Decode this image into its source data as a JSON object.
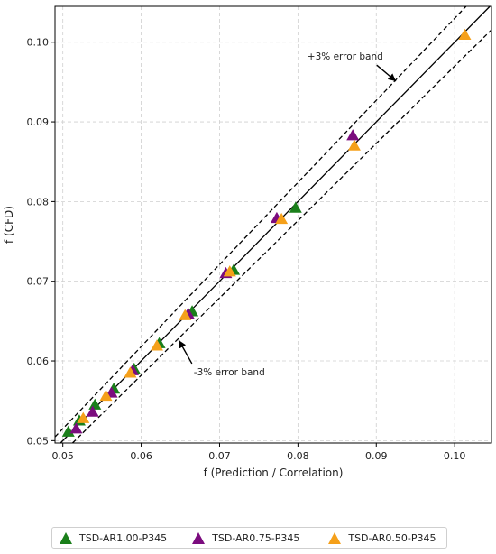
{
  "chart_data": {
    "type": "scatter",
    "xlabel": "f (Prediction / Correlation)",
    "ylabel": "f (CFD)",
    "xlim": [
      0.049,
      0.1047
    ],
    "ylim": [
      0.0497,
      0.1045
    ],
    "xticks": [
      "0.05",
      "0.06",
      "0.07",
      "0.08",
      "0.09",
      "0.10"
    ],
    "yticks": [
      "0.05",
      "0.06",
      "0.07",
      "0.08",
      "0.09",
      "0.10"
    ],
    "grid": true,
    "legend_position": "bottom-outside",
    "reference_line": "y = x",
    "error_band_percent": 3,
    "annotations": [
      {
        "text": "+3% error band",
        "text_at": [
          0.0812,
          0.0978
        ],
        "arrow_to": [
          0.0925,
          0.0951
        ]
      },
      {
        "text": "-3% error band",
        "text_at": [
          0.0667,
          0.0582
        ],
        "arrow_to": [
          0.0648,
          0.0626
        ]
      }
    ],
    "series": [
      {
        "name": "TSD-AR1.00-P345",
        "color": "#1a7f1a",
        "points": [
          [
            0.0507,
            0.0511
          ],
          [
            0.0521,
            0.0525
          ],
          [
            0.0541,
            0.0545
          ],
          [
            0.0565,
            0.0565
          ],
          [
            0.0591,
            0.059
          ],
          [
            0.0623,
            0.0622
          ],
          [
            0.0665,
            0.0662
          ],
          [
            0.0718,
            0.0714
          ],
          [
            0.0797,
            0.0792
          ]
        ]
      },
      {
        "name": "TSD-AR0.75-P345",
        "color": "#7b0c7e",
        "points": [
          [
            0.0517,
            0.0515
          ],
          [
            0.0538,
            0.0536
          ],
          [
            0.0562,
            0.056
          ],
          [
            0.0589,
            0.0588
          ],
          [
            0.066,
            0.0659
          ],
          [
            0.0708,
            0.071
          ],
          [
            0.0773,
            0.0779
          ],
          [
            0.087,
            0.0883
          ]
        ]
      },
      {
        "name": "TSD-AR0.50-P345",
        "color": "#f5a01a",
        "points": [
          [
            0.0526,
            0.0528
          ],
          [
            0.0555,
            0.0556
          ],
          [
            0.0586,
            0.0585
          ],
          [
            0.062,
            0.0619
          ],
          [
            0.0656,
            0.0657
          ],
          [
            0.0713,
            0.0712
          ],
          [
            0.0779,
            0.0778
          ],
          [
            0.0872,
            0.087
          ],
          [
            0.1013,
            0.1009
          ]
        ]
      }
    ]
  }
}
